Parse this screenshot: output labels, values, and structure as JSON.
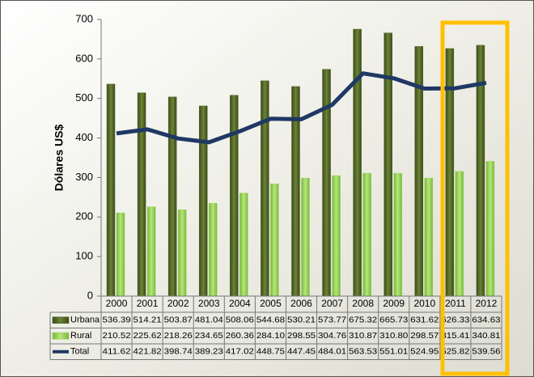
{
  "chart_data": {
    "type": "bar-line-table",
    "ylabel": "Dólares US$",
    "categories": [
      "2000",
      "2001",
      "2002",
      "2003",
      "2004",
      "2005",
      "2006",
      "2007",
      "2008",
      "2009",
      "2010",
      "2011",
      "2012"
    ],
    "series": [
      {
        "name": "Urbana",
        "kind": "bar",
        "color": "#4f6228",
        "values": [
          536.39,
          514.21,
          503.87,
          481.04,
          508.06,
          544.68,
          530.21,
          573.77,
          675.32,
          665.73,
          631.62,
          626.33,
          634.63
        ],
        "value_labels": [
          "536.39",
          "514.21",
          "503.87",
          "481.04",
          "508.06",
          "544.68",
          "530.21",
          "573.77",
          "675.32",
          "665.73",
          "631.62",
          "626.33",
          "634.63"
        ]
      },
      {
        "name": "Rural",
        "kind": "bar",
        "color": "#92d050",
        "values": [
          210.52,
          225.62,
          218.26,
          234.65,
          260.36,
          284.1,
          298.55,
          304.76,
          310.87,
          310.8,
          298.57,
          315.41,
          340.81
        ],
        "value_labels": [
          "210.52",
          "225.62",
          "218.26",
          "234.65",
          "260.36",
          "284.10",
          "298.55",
          "304.76",
          "310.87",
          "310.80",
          "298.57",
          "315.41",
          "340.81"
        ]
      },
      {
        "name": "Total",
        "kind": "line",
        "color": "#1f3864",
        "values": [
          411.62,
          421.82,
          398.74,
          389.23,
          417.02,
          448.75,
          447.45,
          484.01,
          563.53,
          551.01,
          524.95,
          525.82,
          539.56
        ],
        "value_labels": [
          "411.62",
          "421.82",
          "398.74",
          "389.23",
          "417.02",
          "448.75",
          "447.45",
          "484.01",
          "563.53",
          "551.01",
          "524.95",
          "525.82",
          "539.56"
        ]
      }
    ],
    "ylim": [
      0,
      700
    ],
    "yticks": [
      0,
      100,
      200,
      300,
      400,
      500,
      600,
      700
    ],
    "grid": false
  }
}
